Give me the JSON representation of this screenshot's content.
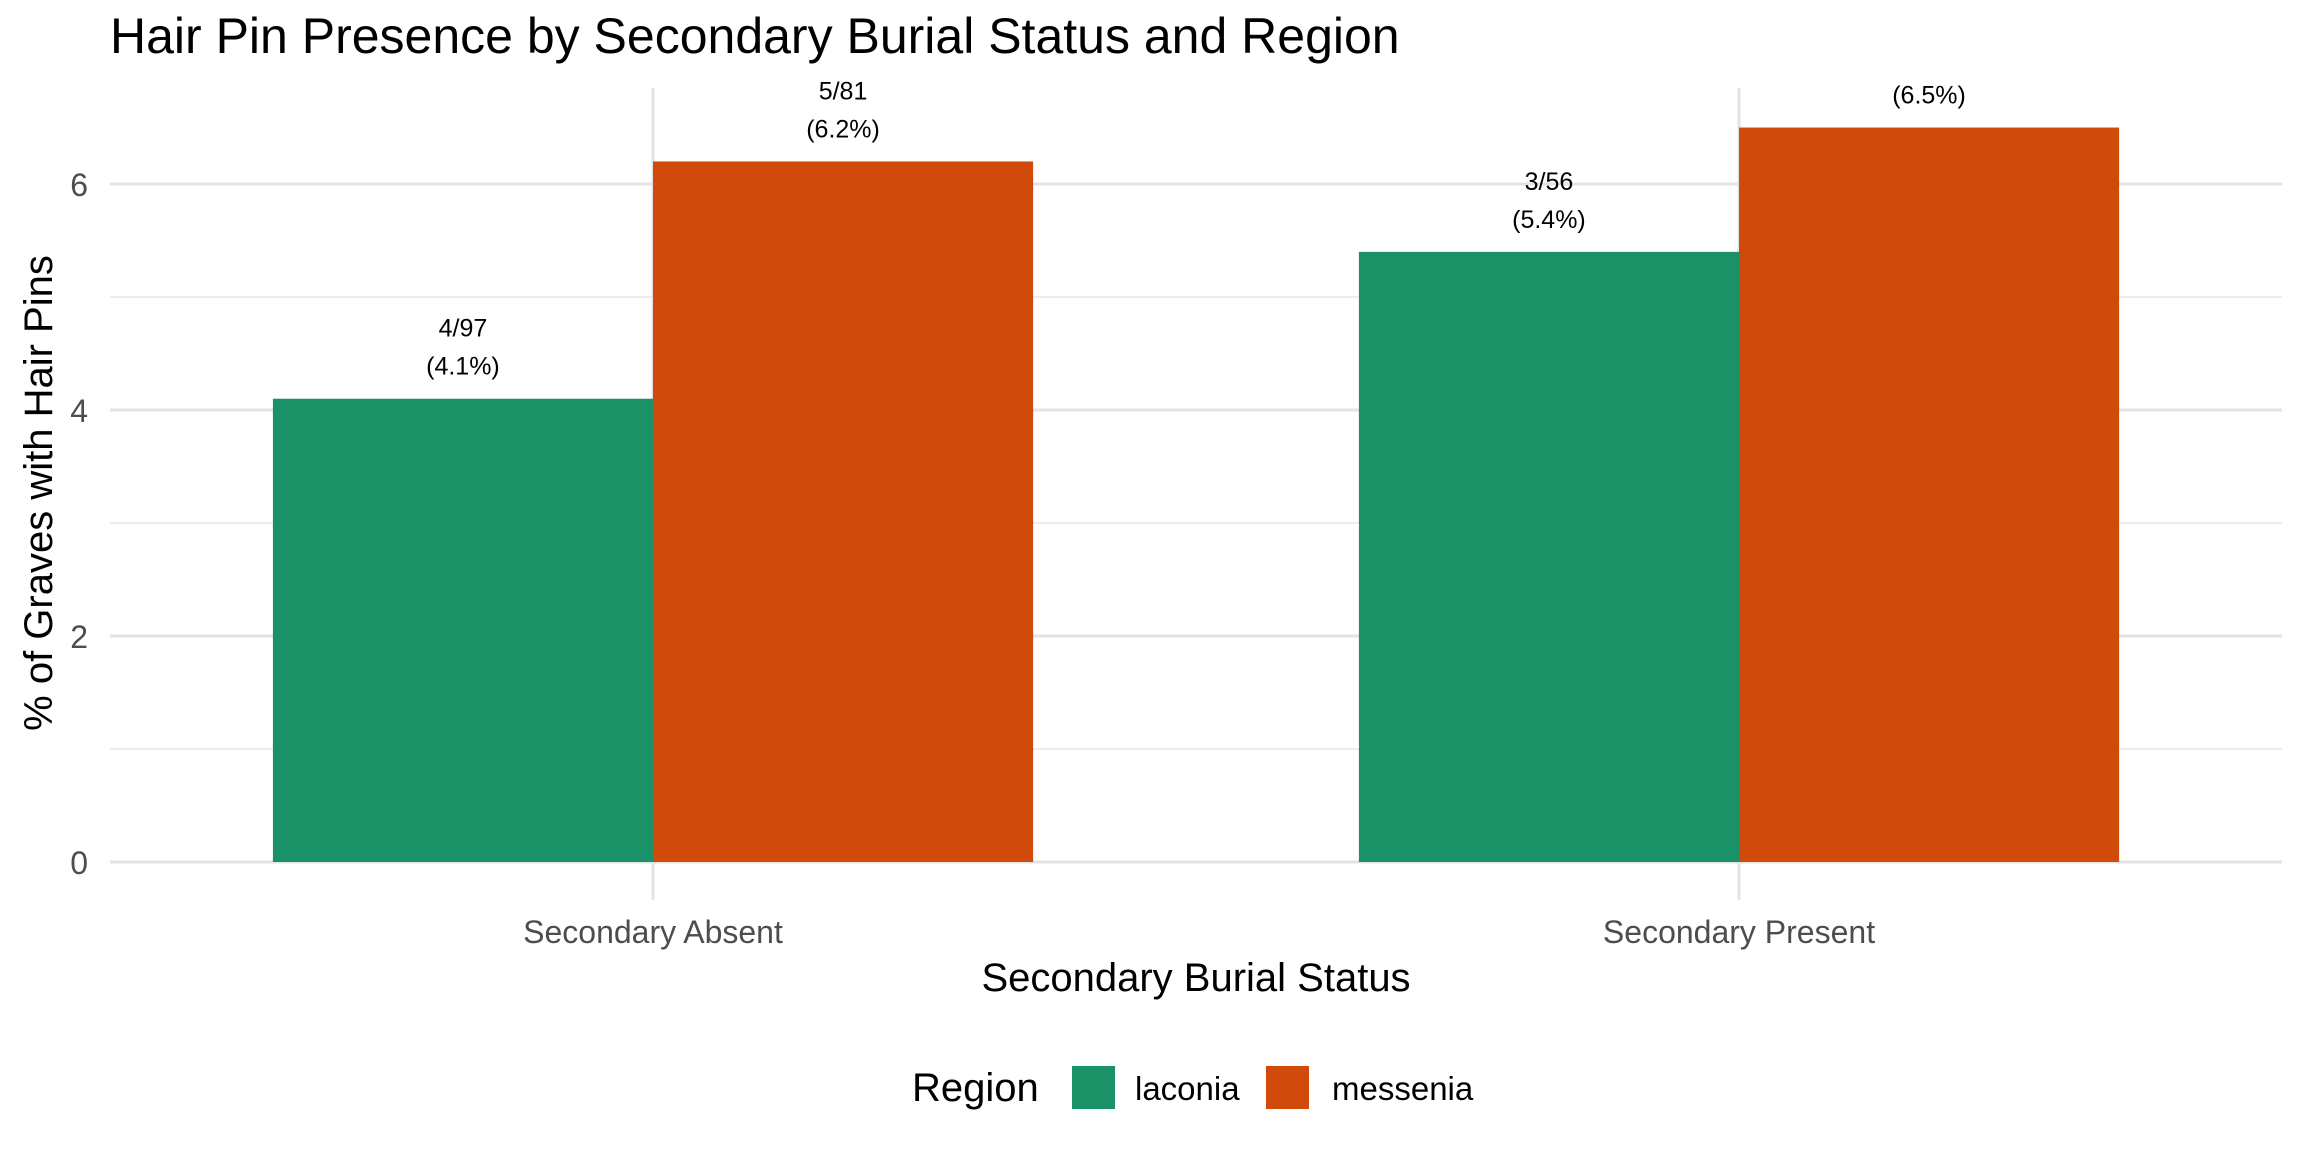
{
  "chart_data": {
    "type": "bar",
    "title": "Hair Pin Presence by Secondary Burial Status and Region",
    "xlabel": "Secondary Burial Status",
    "ylabel": "% of Graves with Hair Pins",
    "categories": [
      "Secondary Absent",
      "Secondary Present"
    ],
    "series": [
      {
        "name": "laconia",
        "color": "#1b9168",
        "values": [
          4.1,
          5.4
        ],
        "labels": [
          [
            "4/97",
            "(4.1%)"
          ],
          [
            "3/56",
            "(5.4%)"
          ]
        ]
      },
      {
        "name": "messenia",
        "color": "#d04a0b",
        "values": [
          6.2,
          6.5
        ],
        "labels": [
          [
            "5/81",
            "(6.2%)"
          ],
          [
            "",
            "(6.5%)"
          ]
        ]
      }
    ],
    "yticks": [
      0,
      2,
      4,
      6
    ],
    "ylim": [
      0,
      6.85
    ],
    "grid": true,
    "legend": {
      "title": "Region",
      "placement": "bottom"
    }
  }
}
